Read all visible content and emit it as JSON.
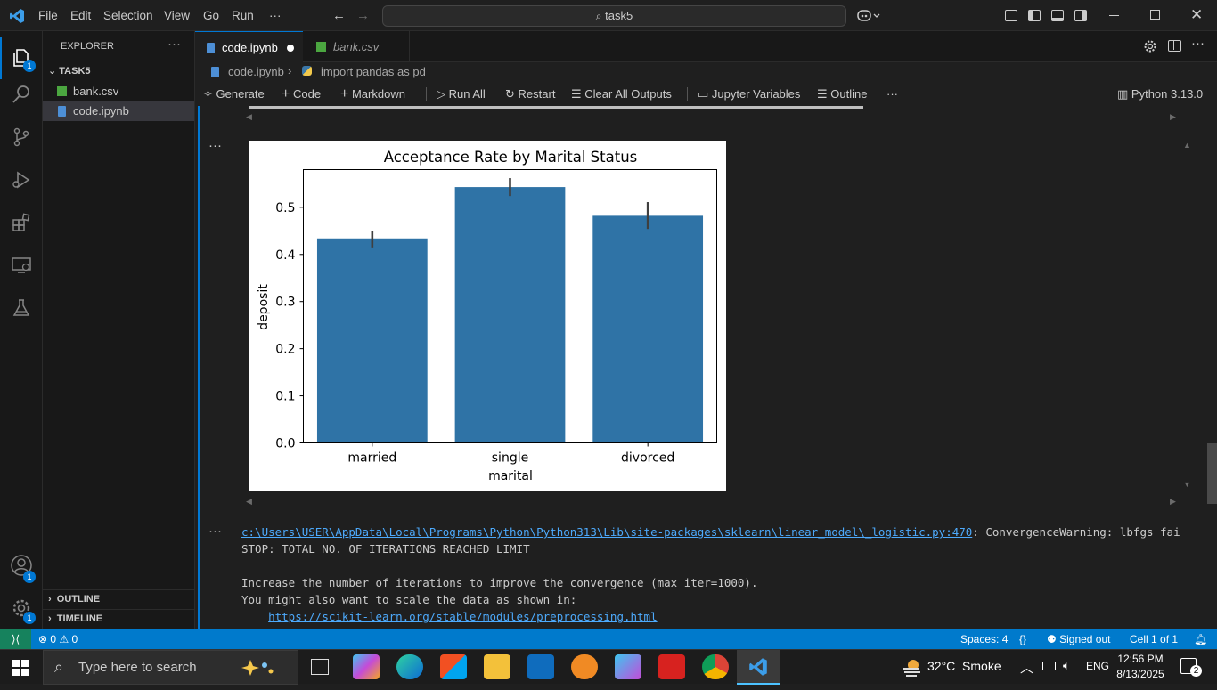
{
  "titlebar": {
    "menu": [
      "File",
      "Edit",
      "Selection",
      "View",
      "Go",
      "Run",
      "···"
    ],
    "search_text": "task5"
  },
  "sidebar": {
    "header": "EXPLORER",
    "folder": "TASK5",
    "files": [
      "bank.csv",
      "code.ipynb"
    ],
    "outline": "OUTLINE",
    "timeline": "TIMELINE"
  },
  "tabs": [
    {
      "label": "code.ipynb",
      "active": true,
      "modified": true
    },
    {
      "label": "bank.csv",
      "active": false,
      "modified": false
    }
  ],
  "breadcrumb": {
    "file": "code.ipynb",
    "symbol": "import pandas as pd"
  },
  "toolbar": {
    "generate": "Generate",
    "code": "Code",
    "markdown": "Markdown",
    "run_all": "Run All",
    "restart": "Restart",
    "clear": "Clear All Outputs",
    "variables": "Jupyter Variables",
    "outline": "Outline",
    "kernel": "Python 3.13.0"
  },
  "chart_data": {
    "type": "bar",
    "title": "Acceptance Rate by Marital Status",
    "xlabel": "marital",
    "ylabel": "deposit",
    "categories": [
      "married",
      "single",
      "divorced"
    ],
    "values": [
      0.434,
      0.543,
      0.482
    ],
    "errors": [
      [
        0.415,
        0.45
      ],
      [
        0.524,
        0.562
      ],
      [
        0.454,
        0.511
      ]
    ],
    "ylim": [
      0,
      0.58
    ],
    "yticks": [
      0.0,
      0.1,
      0.2,
      0.3,
      0.4,
      0.5
    ],
    "ytick_labels": [
      "0.0",
      "0.1",
      "0.2",
      "0.3",
      "0.4",
      "0.5"
    ],
    "bar_color": "#2f73a6",
    "grid": false
  },
  "output": {
    "path_link": "c:\\Users\\USER\\AppData\\Local\\Programs\\Python\\Python313\\Lib\\site-packages\\sklearn\\linear_model\\_logistic.py:470",
    "warning_tail": ": ConvergenceWarning: lbfgs fai",
    "line2": "STOP: TOTAL NO. OF ITERATIONS REACHED LIMIT",
    "line4": "Increase the number of iterations to improve the convergence (max_iter=1000).",
    "line5": "You might also want to scale the data as shown in:",
    "link2": "https://scikit-learn.org/stable/modules/preprocessing.html"
  },
  "statusbar": {
    "problems": "0",
    "warnings": "0",
    "spaces": "Spaces: 4",
    "signed": "Signed out",
    "cell": "Cell 1 of 1",
    "badge": "1"
  },
  "taskbar": {
    "search_placeholder": "Type here to search",
    "weather": "32°C  Smoke",
    "lang": "ENG",
    "time": "12:56 PM",
    "date": "8/13/2025",
    "notif": "2"
  },
  "colors": {
    "accent": "#0078d4",
    "statusbar": "#007acc",
    "link": "#4daafc",
    "bar": "#2f73a6"
  }
}
